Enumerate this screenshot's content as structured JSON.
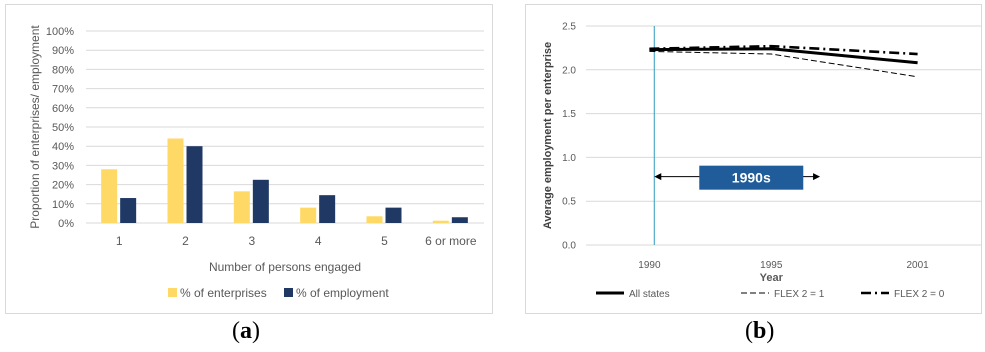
{
  "captions": {
    "a": {
      "open": "(",
      "letter": "a",
      "close": ")"
    },
    "b": {
      "open": "(",
      "letter": "b",
      "close": ")"
    }
  },
  "colors": {
    "enterprises": "#FFD966",
    "employment": "#1F3864",
    "grid": "#d9d9d9",
    "annotation_box": "#1F5C99",
    "vline": "#2E9BBF",
    "text": "#595959"
  },
  "chart_data": [
    {
      "type": "bar",
      "title": "",
      "xlabel": "Number of persons engaged",
      "ylabel": "Proportion of enterprises/ employment",
      "categories": [
        "1",
        "2",
        "3",
        "4",
        "5",
        "6 or more"
      ],
      "ylim": [
        0,
        100
      ],
      "yticks": [
        "0%",
        "10%",
        "20%",
        "30%",
        "40%",
        "50%",
        "60%",
        "70%",
        "80%",
        "90%",
        "100%"
      ],
      "grid": true,
      "legend_position": "bottom",
      "series": [
        {
          "name": "% of enterprises",
          "values": [
            28,
            44,
            16.5,
            8,
            3.5,
            1.2
          ]
        },
        {
          "name": "% of employment",
          "values": [
            13,
            40,
            22.5,
            14.5,
            8,
            3
          ]
        }
      ]
    },
    {
      "type": "line",
      "title": "",
      "xlabel": "Year",
      "ylabel": "Average employment per enterprise",
      "x": [
        1990,
        1995,
        2001
      ],
      "xticks": [
        "1990",
        "1995",
        "2001"
      ],
      "ylim": [
        0,
        2.5
      ],
      "yticks": [
        "0.0",
        "0.5",
        "1.0",
        "1.5",
        "2.0",
        "2.5"
      ],
      "grid": true,
      "legend_position": "bottom",
      "series": [
        {
          "name": "All states",
          "values": [
            2.23,
            2.24,
            2.08
          ],
          "style": "solid"
        },
        {
          "name": "FLEX 2 = 1",
          "values": [
            2.21,
            2.18,
            1.92
          ],
          "style": "dashed"
        },
        {
          "name": "FLEX 2 = 0",
          "values": [
            2.24,
            2.27,
            2.18
          ],
          "style": "dashdot"
        }
      ],
      "annotation": {
        "label": "1990s",
        "x_start": 1990.2,
        "x_end": 1997.0,
        "y": 0.78,
        "vline_x": 1990.2
      }
    }
  ]
}
